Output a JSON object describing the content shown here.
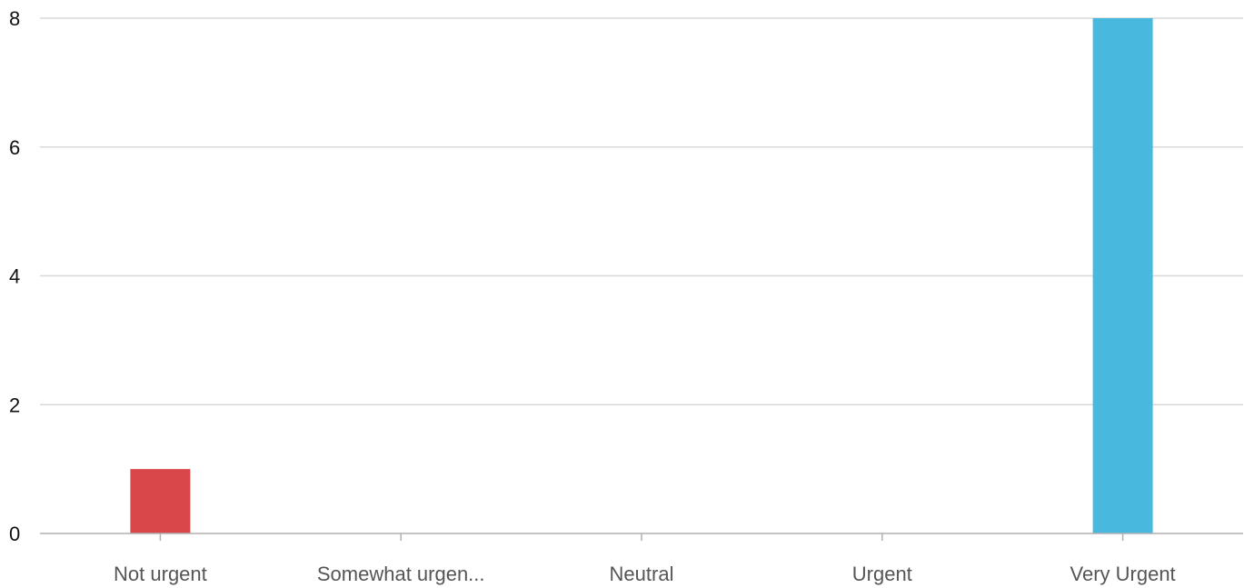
{
  "chart_data": {
    "type": "bar",
    "categories": [
      "Not urgent",
      "Somewhat urgen...",
      "Neutral",
      "Urgent",
      "Very Urgent"
    ],
    "values": [
      1,
      0,
      0,
      0,
      8
    ],
    "bar_colors": [
      "#d9474b",
      "#e5a53a",
      "#8bc34a",
      "#3b7dc4",
      "#49b8df"
    ],
    "title": "",
    "xlabel": "",
    "ylabel": "",
    "ylim": [
      0,
      8
    ],
    "yticks": [
      0,
      2,
      4,
      6,
      8
    ],
    "grid": true,
    "legend": "none",
    "gridline_color": "#d9d9d9",
    "axis_color": "#b0b0b0"
  }
}
